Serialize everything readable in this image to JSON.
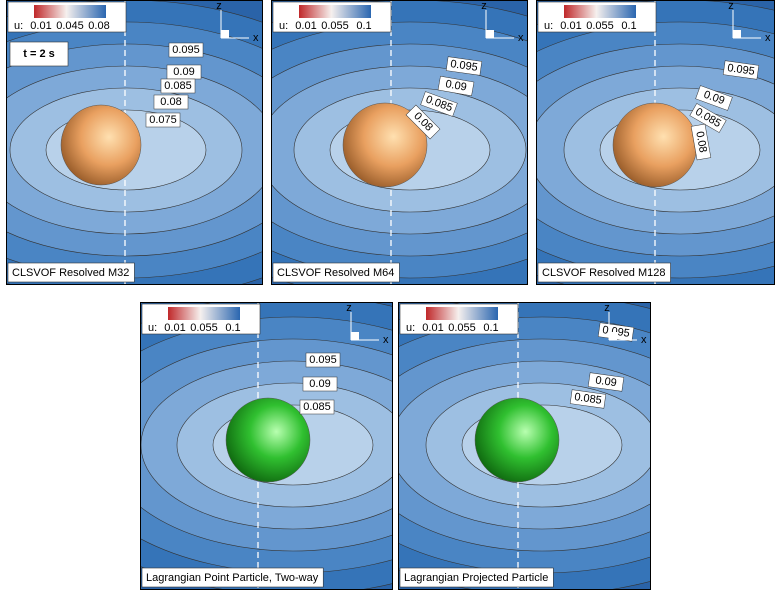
{
  "axes": {
    "z": "z",
    "x": "x"
  },
  "panels": [
    {
      "caption": "CLSVOF Resolved M32",
      "time_label": "t = 2 s",
      "particle": "orange",
      "legend": {
        "prefix": "u:",
        "ticks": [
          "0.01",
          "0.045",
          "0.08"
        ]
      },
      "contour_labels": [
        "0.095",
        "0.09",
        "0.085",
        "0.08",
        "0.075"
      ]
    },
    {
      "caption": "CLSVOF Resolved M64",
      "particle": "orange",
      "legend": {
        "prefix": "u:",
        "ticks": [
          "0.01",
          "0.055",
          "0.1"
        ]
      },
      "contour_labels": [
        "0.095",
        "0.09",
        "0.085",
        "0.08"
      ]
    },
    {
      "caption": "CLSVOF Resolved M128",
      "particle": "orange",
      "legend": {
        "prefix": "u:",
        "ticks": [
          "0.01",
          "0.055",
          "0.1"
        ]
      },
      "contour_labels": [
        "0.095",
        "0.09",
        "0.085",
        "0.08"
      ]
    },
    {
      "caption": "Lagrangian Point Particle, Two-way",
      "particle": "green",
      "legend": {
        "prefix": "u:",
        "ticks": [
          "0.01",
          "0.055",
          "0.1"
        ]
      },
      "contour_labels": [
        "0.095",
        "0.09",
        "0.085"
      ]
    },
    {
      "caption": "Lagrangian Projected Particle",
      "particle": "green",
      "legend": {
        "prefix": "u:",
        "ticks": [
          "0.01",
          "0.055",
          "0.1"
        ]
      },
      "contour_labels": [
        "0.095",
        "0.09",
        "0.085"
      ]
    }
  ]
}
